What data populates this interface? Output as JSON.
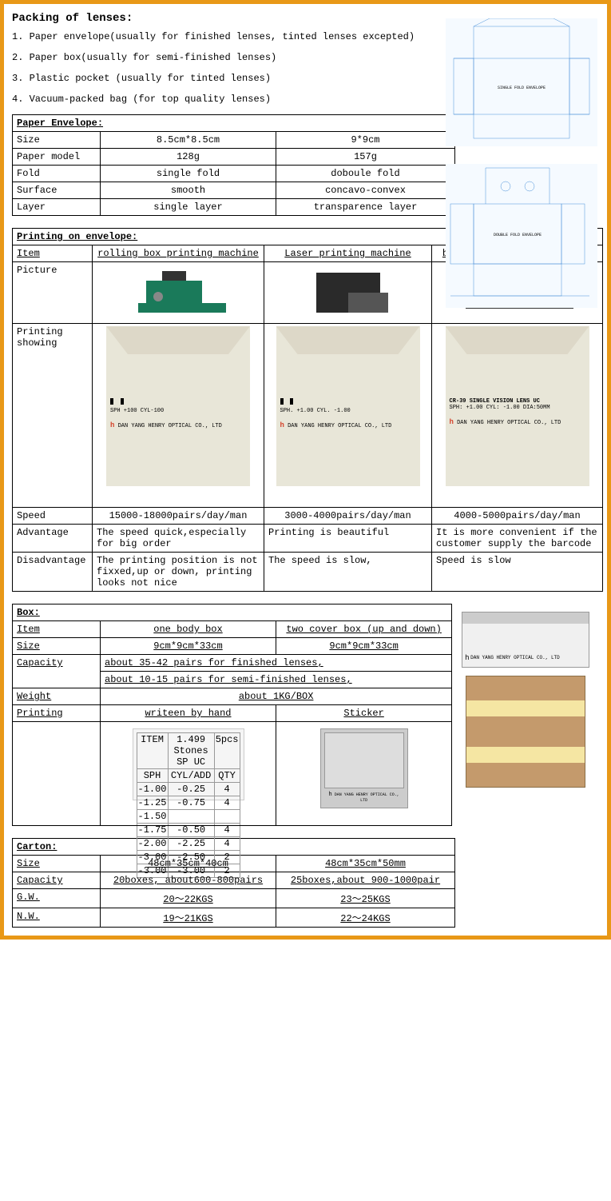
{
  "packing": {
    "title": "Packing of lenses:",
    "items": [
      "1. Paper envelope(usually for finished lenses, tinted lenses excepted)",
      "2. Paper box(usually for semi-finished lenses)",
      "3. Plastic pocket (usually for tinted lenses)",
      "4. Vacuum-packed bag (for top quality lenses)"
    ]
  },
  "paper_envelope": {
    "title": "Paper Envelope:",
    "rows": [
      {
        "label": "Size",
        "c1": "8.5cm*8.5cm",
        "c2": "9*9cm"
      },
      {
        "label": "Paper model",
        "c1": "128g",
        "c2": "157g"
      },
      {
        "label": "Fold",
        "c1": "single fold",
        "c2": "doboule fold"
      },
      {
        "label": "Surface",
        "c1": "smooth",
        "c2": "concavo-convex"
      },
      {
        "label": "Layer",
        "c1": "single layer",
        "c2": "transparence layer"
      }
    ]
  },
  "printing": {
    "title": "Printing on envelope:",
    "item_label": "Item",
    "items": [
      "rolling box printing machine",
      "Laser printing machine",
      "barcode or Sticker machine"
    ],
    "picture_label": "Picture",
    "showing_label": "Printing showing",
    "sample1": {
      "l1": "SPH   +100   CYL-100",
      "company": "DAN YANG HENRY OPTICAL CO., LTD"
    },
    "sample2": {
      "l1": "SPH.  +1.00   CYL.   -1.00",
      "company": "DAN YANG HENRY OPTICAL CO., LTD"
    },
    "sample3": {
      "l1": "CR-39 SINGLE VISION LENS UC",
      "l2": "SPH: +1.00  CYL: -1.00  DIA:50MM",
      "company": "DAN YANG HENRY OPTICAL CO., LTD"
    },
    "speed_label": "Speed",
    "speeds": [
      "15000-18000pairs/day/man",
      "3000-4000pairs/day/man",
      "4000-5000pairs/day/man"
    ],
    "adv_label": "Advantage",
    "advs": [
      "The speed quick,especially for big order",
      "Printing is beautiful",
      "It is more convenient if the customer supply the barcode"
    ],
    "dis_label": "Disadvantage",
    "diss": [
      "The printing position is not fixxed,up or down, printing looks not nice",
      "The speed is slow,",
      "Speed is slow"
    ]
  },
  "box": {
    "title": "Box:",
    "item_label": "Item",
    "items": [
      "one body box",
      "two cover box (up and down)"
    ],
    "size_label": "Size",
    "sizes": [
      "9cm*9cm*33cm",
      "9cm*9cm*33cm"
    ],
    "capacity_label": "Capacity",
    "capacity1": "about 35-42 pairs for finished lenses,",
    "capacity2": "about 10-15 pairs for semi-finished lenses,",
    "weight_label": "Weight",
    "weight": "about 1KG/BOX",
    "printing_label": "Printing",
    "printings": [
      "writeen by hand",
      "Sticker"
    ],
    "label_table": {
      "headers": [
        "ITEM",
        "1.499 Stones SP UC",
        "5pcs"
      ],
      "rows": [
        [
          "SPH",
          "CYL/ADD",
          "QTY"
        ],
        [
          "-1.00",
          "-0.25",
          "4"
        ],
        [
          "-1.25",
          "-0.75",
          "4"
        ],
        [
          "-1.50",
          "",
          ""
        ],
        [
          "-1.75",
          "-0.50",
          "4"
        ],
        [
          "-2.00",
          "-2.25",
          "4"
        ],
        [
          "-3.00",
          "-2.50",
          "2"
        ],
        [
          "-3.00",
          "-3.00",
          "2"
        ]
      ]
    },
    "sticker_company": "DAN YANG HENRY OPTICAL CO., LTD"
  },
  "carton": {
    "title": "Carton:",
    "size_label": "Size",
    "sizes": [
      "48cm*35cm*40cm",
      "48cm*35cm*50mm"
    ],
    "capacity_label": "Capacity",
    "capacities": [
      "20boxes, about600-800pairs",
      "25boxes,about 900-1000pair"
    ],
    "gw_label": "G.W.",
    "gws": [
      "20～22KGS",
      "23～25KGS"
    ],
    "nw_label": "N.W.",
    "nws": [
      "19～21KGS",
      "22～24KGS"
    ]
  },
  "diagram_labels": {
    "single": "SINGLE FOLD ENVELOPE",
    "double": "DOUBLE FOLD ENVELOPE"
  },
  "colors": {
    "border": "#e89817",
    "diagram_stroke": "#4a90d9",
    "envelope_bg": "#e8e6d8",
    "logo": "#d4442c"
  }
}
